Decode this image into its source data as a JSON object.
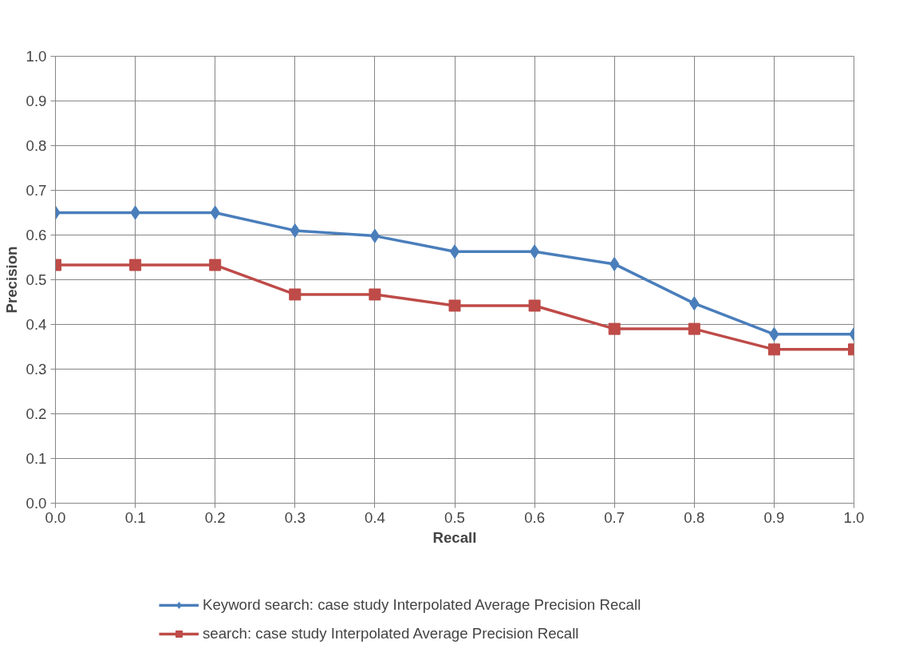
{
  "chart_data": {
    "type": "line",
    "xlabel": "Recall",
    "ylabel": "Precision",
    "x": [
      0.0,
      0.1,
      0.2,
      0.3,
      0.4,
      0.5,
      0.6,
      0.7,
      0.8,
      0.9,
      1.0
    ],
    "series": [
      {
        "name": "Keyword search: case study Interpolated Average Precision Recall",
        "color": "#4a7ebb",
        "marker": "diamond",
        "values": [
          0.65,
          0.65,
          0.65,
          0.61,
          0.598,
          0.563,
          0.563,
          0.535,
          0.447,
          0.378,
          0.378
        ]
      },
      {
        "name": "search: case study Interpolated Average Precision Recall",
        "color": "#be4b48",
        "marker": "square",
        "values": [
          0.533,
          0.533,
          0.533,
          0.467,
          0.467,
          0.442,
          0.442,
          0.39,
          0.39,
          0.344,
          0.344
        ]
      }
    ],
    "xlim": [
      0.0,
      1.0
    ],
    "ylim": [
      0.0,
      1.0
    ],
    "xticks": [
      {
        "value": 0.0,
        "label": "0.0"
      },
      0.1,
      0.2,
      0.3,
      0.4,
      0.5,
      0.6,
      0.7,
      0.8,
      0.9,
      {
        "value": 1.0,
        "label": "1.0"
      }
    ],
    "yticks": [
      {
        "value": 0.0,
        "label": "0.0"
      },
      0.1,
      0.2,
      0.3,
      0.4,
      0.5,
      0.6,
      0.7,
      0.8,
      0.9,
      {
        "value": 1.0,
        "label": "1.0"
      }
    ],
    "grid": true,
    "legend": "bottom",
    "line_style": "solid"
  }
}
